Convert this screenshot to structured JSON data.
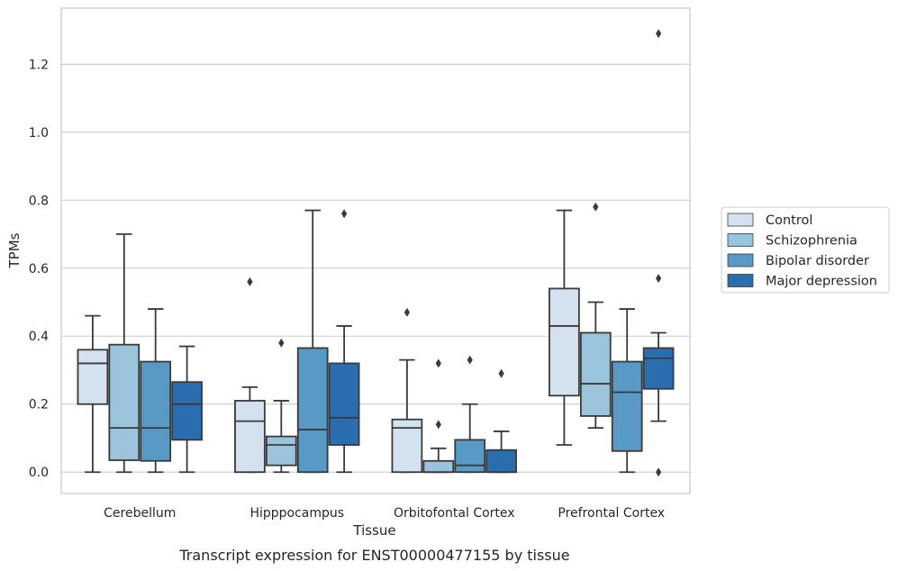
{
  "chart_data": {
    "type": "box",
    "xlabel": "Tissue",
    "ylabel": "TPMs",
    "caption": "Transcript expression for ENST00000477155 by tissue",
    "ylim": [
      -0.063,
      1.365
    ],
    "yticks": [
      0.0,
      0.2,
      0.4,
      0.6,
      0.8,
      1.0,
      1.2
    ],
    "ytick_labels": [
      "0.0",
      "0.2",
      "0.4",
      "0.6",
      "0.8",
      "1.0",
      "1.2"
    ],
    "grid": "horizontal",
    "legend_position": "right",
    "categories": [
      "Cerebellum",
      "Hipppocampus",
      "Orbitofontal Cortex",
      "Prefrontal Cortex"
    ],
    "series": [
      {
        "name": "Control",
        "color": "#d4e2f0",
        "boxes": [
          {
            "whislo": 0.0,
            "q1": 0.2,
            "med": 0.32,
            "q3": 0.36,
            "whishi": 0.46,
            "fliers": []
          },
          {
            "whislo": 0.0,
            "q1": 0.0,
            "med": 0.15,
            "q3": 0.21,
            "whishi": 0.25,
            "fliers": [
              0.56
            ]
          },
          {
            "whislo": 0.0,
            "q1": 0.0,
            "med": 0.13,
            "q3": 0.155,
            "whishi": 0.33,
            "fliers": [
              0.47
            ]
          },
          {
            "whislo": 0.08,
            "q1": 0.225,
            "med": 0.43,
            "q3": 0.54,
            "whishi": 0.77,
            "fliers": []
          }
        ]
      },
      {
        "name": "Schizophrenia",
        "color": "#9ac3dc",
        "boxes": [
          {
            "whislo": 0.0,
            "q1": 0.035,
            "med": 0.13,
            "q3": 0.375,
            "whishi": 0.7,
            "fliers": []
          },
          {
            "whislo": 0.0,
            "q1": 0.02,
            "med": 0.08,
            "q3": 0.105,
            "whishi": 0.21,
            "fliers": [
              0.38
            ]
          },
          {
            "whislo": 0.0,
            "q1": 0.0,
            "med": 0.0,
            "q3": 0.033,
            "whishi": 0.07,
            "fliers": [
              0.14,
              0.32
            ]
          },
          {
            "whislo": 0.13,
            "q1": 0.165,
            "med": 0.26,
            "q3": 0.41,
            "whishi": 0.5,
            "fliers": [
              0.78
            ]
          }
        ]
      },
      {
        "name": "Bipolar disorder",
        "color": "#5899c5",
        "boxes": [
          {
            "whislo": 0.0,
            "q1": 0.033,
            "med": 0.13,
            "q3": 0.325,
            "whishi": 0.48,
            "fliers": []
          },
          {
            "whislo": 0.0,
            "q1": 0.0,
            "med": 0.125,
            "q3": 0.365,
            "whishi": 0.77,
            "fliers": []
          },
          {
            "whislo": 0.0,
            "q1": 0.0,
            "med": 0.02,
            "q3": 0.095,
            "whishi": 0.2,
            "fliers": [
              0.33
            ]
          },
          {
            "whislo": 0.0,
            "q1": 0.062,
            "med": 0.235,
            "q3": 0.325,
            "whishi": 0.48,
            "fliers": []
          }
        ]
      },
      {
        "name": "Major depression",
        "color": "#2a6eb0",
        "boxes": [
          {
            "whislo": 0.0,
            "q1": 0.095,
            "med": 0.2,
            "q3": 0.265,
            "whishi": 0.37,
            "fliers": []
          },
          {
            "whislo": 0.0,
            "q1": 0.08,
            "med": 0.16,
            "q3": 0.32,
            "whishi": 0.43,
            "fliers": [
              0.76
            ]
          },
          {
            "whislo": 0.0,
            "q1": 0.0,
            "med": 0.0,
            "q3": 0.065,
            "whishi": 0.12,
            "fliers": [
              0.29
            ]
          },
          {
            "whislo": 0.15,
            "q1": 0.245,
            "med": 0.335,
            "q3": 0.365,
            "whishi": 0.41,
            "fliers": [
              0.0,
              0.57,
              1.29
            ]
          }
        ]
      }
    ]
  }
}
